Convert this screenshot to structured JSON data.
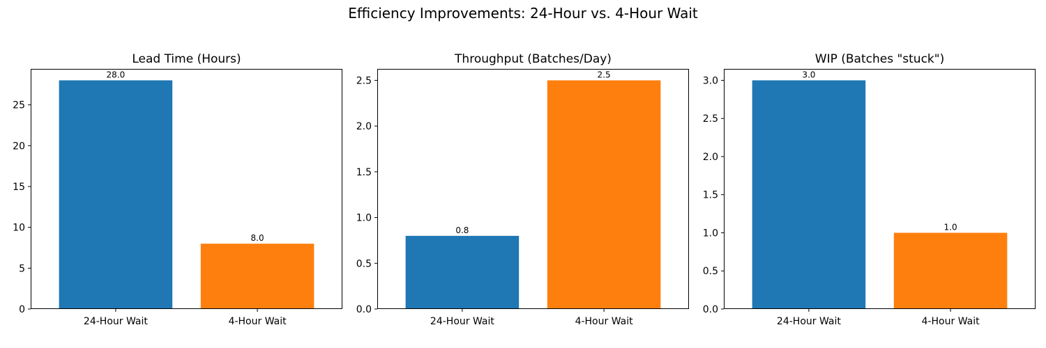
{
  "figure_title": "Efficiency Improvements: 24-Hour vs. 4-Hour Wait",
  "colors": {
    "bar_colors": [
      "#1f77b4",
      "#ff7f0e"
    ]
  },
  "chart_data": [
    {
      "type": "bar",
      "title": "Lead Time (Hours)",
      "categories": [
        "24-Hour Wait",
        "4-Hour Wait"
      ],
      "values": [
        28.0,
        8.0
      ],
      "value_labels": [
        "28.0",
        "8.0"
      ],
      "xlabel": "",
      "ylabel": "",
      "ylim": [
        0,
        29.4
      ],
      "yticks": [
        0,
        5,
        10,
        15,
        20,
        25
      ],
      "ytick_labels": [
        "0",
        "5",
        "10",
        "15",
        "20",
        "25"
      ]
    },
    {
      "type": "bar",
      "title": "Throughput (Batches/Day)",
      "categories": [
        "24-Hour Wait",
        "4-Hour Wait"
      ],
      "values": [
        0.8,
        2.5
      ],
      "value_labels": [
        "0.8",
        "2.5"
      ],
      "xlabel": "",
      "ylabel": "",
      "ylim": [
        0,
        2.625
      ],
      "yticks": [
        0,
        0.5,
        1.0,
        1.5,
        2.0,
        2.5
      ],
      "ytick_labels": [
        "0.0",
        "0.5",
        "1.0",
        "1.5",
        "2.0",
        "2.5"
      ]
    },
    {
      "type": "bar",
      "title": "WIP (Batches \"stuck\")",
      "categories": [
        "24-Hour Wait",
        "4-Hour Wait"
      ],
      "values": [
        3.0,
        1.0
      ],
      "value_labels": [
        "3.0",
        "1.0"
      ],
      "xlabel": "",
      "ylabel": "",
      "ylim": [
        0,
        3.15
      ],
      "yticks": [
        0,
        0.5,
        1.0,
        1.5,
        2.0,
        2.5,
        3.0
      ],
      "ytick_labels": [
        "0.0",
        "0.5",
        "1.0",
        "1.5",
        "2.0",
        "2.5",
        "3.0"
      ]
    }
  ]
}
